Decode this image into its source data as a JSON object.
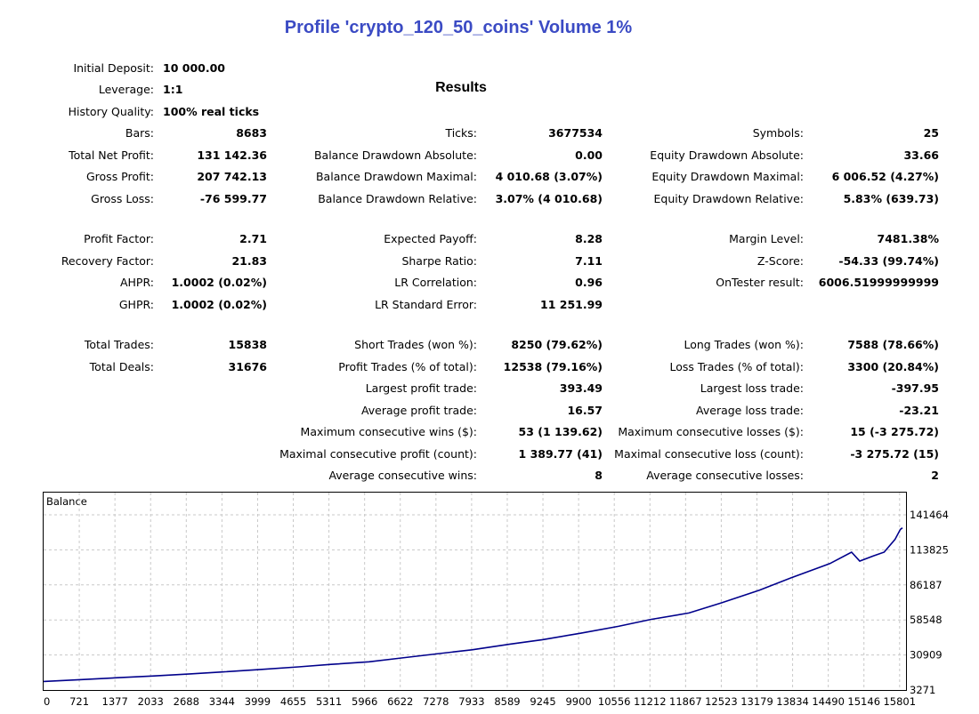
{
  "report": {
    "title": "Profile 'crypto_120_50_coins' Volume 1%",
    "results_heading": "Results"
  },
  "col1": [
    {
      "label": "Initial Deposit:",
      "value": "10 000.00",
      "align": "l"
    },
    {
      "label": "Leverage:",
      "value": "1:1",
      "align": "l"
    },
    {
      "label": "History Quality:",
      "value": "100% real ticks",
      "align": "l"
    },
    {
      "label": "Bars:",
      "value": "8683",
      "align": "r"
    },
    {
      "label": "Total Net Profit:",
      "value": "131 142.36",
      "align": "r"
    },
    {
      "label": "Gross Profit:",
      "value": "207 742.13",
      "align": "r"
    },
    {
      "label": "Gross Loss:",
      "value": "-76 599.77",
      "align": "r"
    },
    {
      "label": "Profit Factor:",
      "value": "2.71",
      "align": "r"
    },
    {
      "label": "Recovery Factor:",
      "value": "21.83",
      "align": "r"
    },
    {
      "label": "AHPR:",
      "value": "1.0002 (0.02%)",
      "align": "r"
    },
    {
      "label": "GHPR:",
      "value": "1.0002 (0.02%)",
      "align": "r"
    },
    {
      "label": "Total Trades:",
      "value": "15838",
      "align": "r"
    },
    {
      "label": "Total Deals:",
      "value": "31676",
      "align": "r"
    }
  ],
  "col2": [
    {
      "label": "Ticks:",
      "value": "3677534"
    },
    {
      "label": "Balance Drawdown Absolute:",
      "value": "0.00"
    },
    {
      "label": "Balance Drawdown Maximal:",
      "value": "4 010.68 (3.07%)"
    },
    {
      "label": "Balance Drawdown Relative:",
      "value": "3.07% (4 010.68)"
    },
    {
      "label": "Expected Payoff:",
      "value": "8.28"
    },
    {
      "label": "Sharpe Ratio:",
      "value": "7.11"
    },
    {
      "label": "LR Correlation:",
      "value": "0.96"
    },
    {
      "label": "LR Standard Error:",
      "value": "11 251.99"
    },
    {
      "label": "Short Trades (won %):",
      "value": "8250 (79.62%)"
    },
    {
      "label": "Profit Trades (% of total):",
      "value": "12538 (79.16%)"
    },
    {
      "label": "Largest profit trade:",
      "value": "393.49"
    },
    {
      "label": "Average profit trade:",
      "value": "16.57"
    },
    {
      "label": "Maximum consecutive wins ($):",
      "value": "53 (1 139.62)"
    },
    {
      "label": "Maximal consecutive profit (count):",
      "value": "1 389.77 (41)"
    },
    {
      "label": "Average consecutive wins:",
      "value": "8"
    }
  ],
  "col3": [
    {
      "label": "Symbols:",
      "value": "25"
    },
    {
      "label": "Equity Drawdown Absolute:",
      "value": "33.66"
    },
    {
      "label": "Equity Drawdown Maximal:",
      "value": "6 006.52 (4.27%)"
    },
    {
      "label": "Equity Drawdown Relative:",
      "value": "5.83% (639.73)"
    },
    {
      "label": "Margin Level:",
      "value": "7481.38%"
    },
    {
      "label": "Z-Score:",
      "value": "-54.33 (99.74%)"
    },
    {
      "label": "OnTester result:",
      "value": "6006.51999999999"
    },
    {
      "label": "Long Trades (won %):",
      "value": "7588 (78.66%)"
    },
    {
      "label": "Loss Trades (% of total):",
      "value": "3300 (20.84%)"
    },
    {
      "label": "Largest loss trade:",
      "value": "-397.95"
    },
    {
      "label": "Average loss trade:",
      "value": "-23.21"
    },
    {
      "label": "Maximum consecutive losses ($):",
      "value": "15 (-3 275.72)"
    },
    {
      "label": "Maximal consecutive loss (count):",
      "value": "-3 275.72 (15)"
    },
    {
      "label": "Average consecutive losses:",
      "value": "2"
    }
  ],
  "colors": {
    "title": "#3b4bc4",
    "balance_line": "#00008b",
    "grid": "#c8c8c8"
  },
  "chart_data": {
    "type": "line",
    "title": "Balance",
    "x_ticks": [
      "0",
      "721",
      "1377",
      "2033",
      "2688",
      "3344",
      "3999",
      "4655",
      "5311",
      "5966",
      "6622",
      "7278",
      "7933",
      "8589",
      "9245",
      "9900",
      "10556",
      "11212",
      "11867",
      "12523",
      "13179",
      "13834",
      "14490",
      "15146",
      "15801"
    ],
    "y_ticks": [
      "141464",
      "113825",
      "86187",
      "58548",
      "30909",
      "3271"
    ],
    "ylim": [
      3271,
      141464
    ],
    "xlim": [
      0,
      15838
    ],
    "grid": true,
    "series": [
      {
        "values": [
          [
            0,
            10000
          ],
          [
            700,
            11500
          ],
          [
            1400,
            13000
          ],
          [
            2000,
            14300
          ],
          [
            2700,
            16000
          ],
          [
            3300,
            17500
          ],
          [
            4000,
            19500
          ],
          [
            4700,
            21500
          ],
          [
            5300,
            23500
          ],
          [
            6000,
            25500
          ],
          [
            6600,
            28500
          ],
          [
            7300,
            32000
          ],
          [
            7900,
            35000
          ],
          [
            8600,
            39500
          ],
          [
            9200,
            43000
          ],
          [
            9900,
            48000
          ],
          [
            10600,
            53500
          ],
          [
            11200,
            59000
          ],
          [
            11900,
            64000
          ],
          [
            12500,
            72000
          ],
          [
            13200,
            82000
          ],
          [
            13800,
            92000
          ],
          [
            14500,
            103000
          ],
          [
            14900,
            112000
          ],
          [
            15050,
            105000
          ],
          [
            15300,
            109000
          ],
          [
            15500,
            112000
          ],
          [
            15700,
            122000
          ],
          [
            15800,
            130000
          ],
          [
            15838,
            131142
          ]
        ]
      }
    ]
  }
}
